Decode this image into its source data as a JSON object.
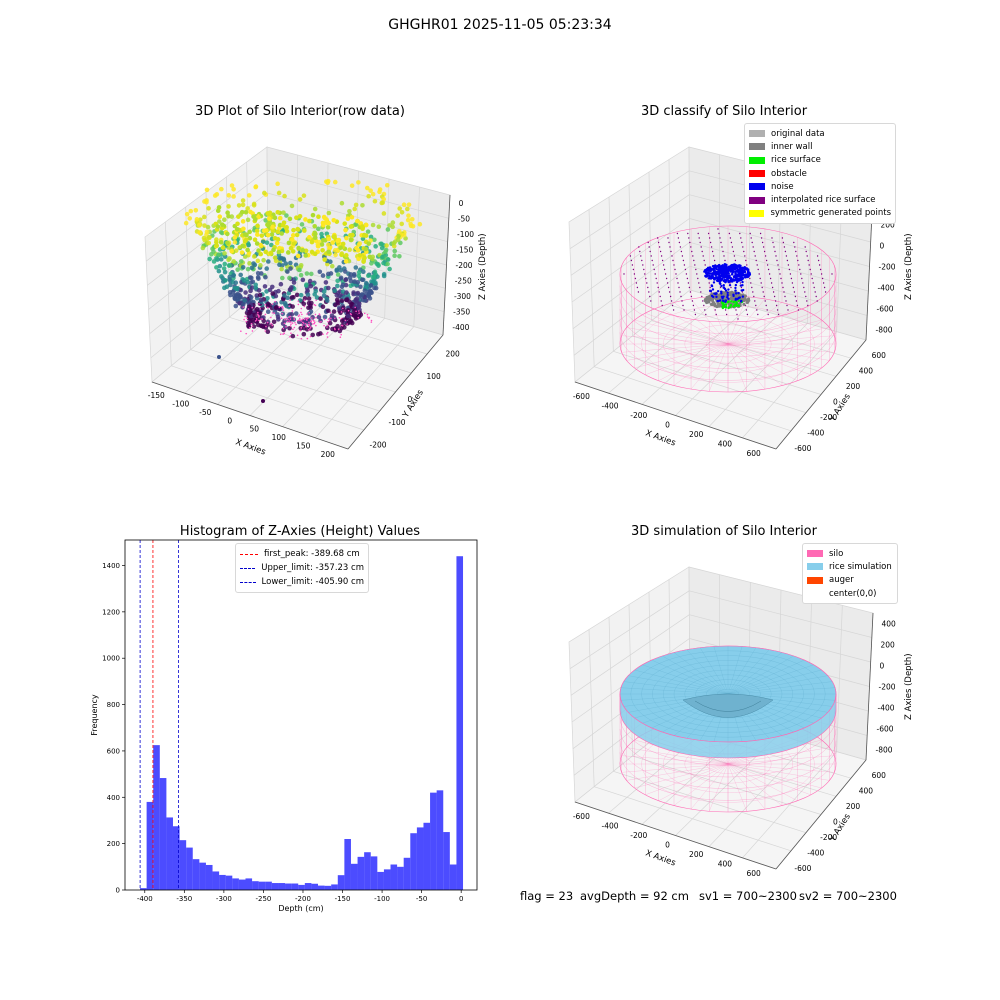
{
  "suptitle": "GHGHR01 2025-11-05 05:23:34",
  "panel1": {
    "title": "3D Plot of Silo Interior(row data)",
    "xlabel": "X Axies",
    "ylabel": "Y Axies",
    "zlabel": "Z Axies (Depth)",
    "xticks": [
      "-150",
      "-100",
      "-50",
      "0",
      "50",
      "100",
      "150",
      "200"
    ],
    "yticks": [
      "-200",
      "-100",
      "0",
      "100",
      "200"
    ],
    "zticks": [
      "0",
      "-50",
      "-100",
      "-150",
      "-200",
      "-250",
      "-300",
      "-350",
      "-400"
    ]
  },
  "panel2": {
    "title": "3D classify of Silo Interior",
    "xlabel": "X Axies",
    "ylabel": "Y Axies",
    "zlabel": "Z Axies (Depth)",
    "xticks": [
      "-600",
      "-400",
      "-200",
      "0",
      "200",
      "400",
      "600"
    ],
    "yticks": [
      "-600",
      "-400",
      "-200",
      "0",
      "200",
      "400",
      "600"
    ],
    "zticks": [
      "400",
      "200",
      "0",
      "-200",
      "-400",
      "-600",
      "-800"
    ],
    "legend": [
      {
        "label": "original data",
        "color": "#b0b0b0"
      },
      {
        "label": "inner wall",
        "color": "#808080"
      },
      {
        "label": "rice surface",
        "color": "#00ee00"
      },
      {
        "label": "obstacle",
        "color": "#ff0000"
      },
      {
        "label": "noise",
        "color": "#0000ee"
      },
      {
        "label": "interpolated rice surface",
        "color": "#800080"
      },
      {
        "label": "symmetric generated points",
        "color": "#ffff00"
      }
    ]
  },
  "panel3": {
    "title": "Histogram of Z-Axies (Height) Values",
    "xlabel": "Depth (cm)",
    "ylabel": "Frequency",
    "legend": [
      {
        "label": "first_peak: -389.68 cm",
        "color": "#ff0000"
      },
      {
        "label": "Upper_limit: -357.23 cm",
        "color": "#0000cc"
      },
      {
        "label": "Lower_limit: -405.90 cm",
        "color": "#0000cc"
      }
    ]
  },
  "panel4": {
    "title": "3D simulation of Silo Interior",
    "xlabel": "X Axies",
    "ylabel": "Y Axies",
    "zlabel": "Z Axies (Depth)",
    "xticks": [
      "-600",
      "-400",
      "-200",
      "0",
      "200",
      "400",
      "600"
    ],
    "yticks": [
      "-600",
      "-400",
      "-200",
      "0",
      "200",
      "400",
      "600"
    ],
    "zticks": [
      "400",
      "200",
      "0",
      "-200",
      "-400",
      "-600",
      "-800"
    ],
    "legend": [
      {
        "label": "silo",
        "color": "#ff69b4"
      },
      {
        "label": "rice simulation",
        "color": "#87ceeb"
      },
      {
        "label": "auger",
        "color": "#ff4500"
      },
      {
        "label": "center(0,0)",
        "color": ""
      }
    ]
  },
  "footer": {
    "flag": "flag = 23",
    "avg_depth": "avgDepth = 92 cm",
    "sv1": "sv1 = 700~2300",
    "sv2": "sv2 = 700~2300"
  },
  "chart_data": [
    {
      "type": "scatter",
      "title": "3D Plot of Silo Interior(row data)",
      "xlabel": "X Axies",
      "ylabel": "Y Axies",
      "zlabel": "Z Axies (Depth)",
      "xlim": [
        -170,
        220
      ],
      "ylim": [
        -250,
        250
      ],
      "zlim": [
        -430,
        10
      ],
      "colormap": "viridis"
    },
    {
      "type": "scatter",
      "title": "3D classify of Silo Interior",
      "xlim": [
        -700,
        700
      ],
      "ylim": [
        -700,
        700
      ],
      "zlim": [
        -900,
        450
      ],
      "series": [
        {
          "name": "original data"
        },
        {
          "name": "inner wall"
        },
        {
          "name": "rice surface"
        },
        {
          "name": "obstacle"
        },
        {
          "name": "noise"
        },
        {
          "name": "interpolated rice surface"
        },
        {
          "name": "symmetric generated points"
        }
      ]
    },
    {
      "type": "bar",
      "title": "Histogram of Z-Axies (Height) Values",
      "xlabel": "Depth (cm)",
      "ylabel": "Frequency",
      "xlim": [
        -425,
        20
      ],
      "ylim": [
        0,
        1510
      ],
      "xticks": [
        -400,
        -350,
        -300,
        -250,
        -200,
        -150,
        -100,
        -50,
        0
      ],
      "yticks": [
        0,
        200,
        400,
        600,
        800,
        1000,
        1200,
        1400
      ],
      "bin_width": 8.33,
      "bin_starts": [
        -406,
        -397.67,
        -389.33,
        -381,
        -372.67,
        -364.33,
        -356,
        -347.67,
        -339.33,
        -331,
        -322.67,
        -314.33,
        -306,
        -297.67,
        -289.33,
        -281,
        -272.67,
        -264.33,
        -256,
        -247.67,
        -239.33,
        -231,
        -222.67,
        -214.33,
        -206,
        -197.67,
        -189.33,
        -181,
        -172.67,
        -164.33,
        -156,
        -147.67,
        -139.33,
        -131,
        -122.67,
        -114.33,
        -106,
        -97.67,
        -89.33,
        -81,
        -72.67,
        -64.33,
        -56,
        -47.67,
        -39.33,
        -31,
        -22.67,
        -14.33,
        -6
      ],
      "values": [
        8,
        380,
        625,
        483,
        313,
        275,
        215,
        183,
        133,
        118,
        108,
        80,
        65,
        62,
        50,
        45,
        50,
        38,
        36,
        36,
        30,
        30,
        28,
        28,
        22,
        30,
        27,
        19,
        18,
        24,
        64,
        220,
        113,
        143,
        163,
        145,
        78,
        89,
        110,
        100,
        139,
        245,
        270,
        290,
        420,
        430,
        250,
        110,
        1440
      ],
      "color": "#0000ff",
      "vlines": [
        {
          "x": -389.68,
          "label": "first_peak: -389.68 cm",
          "color": "#ff0000"
        },
        {
          "x": -357.23,
          "label": "Upper_limit: -357.23 cm",
          "color": "#0000cc"
        },
        {
          "x": -405.9,
          "label": "Lower_limit: -405.90 cm",
          "color": "#0000cc"
        }
      ]
    },
    {
      "type": "scatter",
      "title": "3D simulation of Silo Interior",
      "xlim": [
        -700,
        700
      ],
      "ylim": [
        -700,
        700
      ],
      "zlim": [
        -900,
        450
      ],
      "series": [
        {
          "name": "silo"
        },
        {
          "name": "rice simulation"
        },
        {
          "name": "auger"
        },
        {
          "name": "center(0,0)"
        }
      ]
    }
  ]
}
